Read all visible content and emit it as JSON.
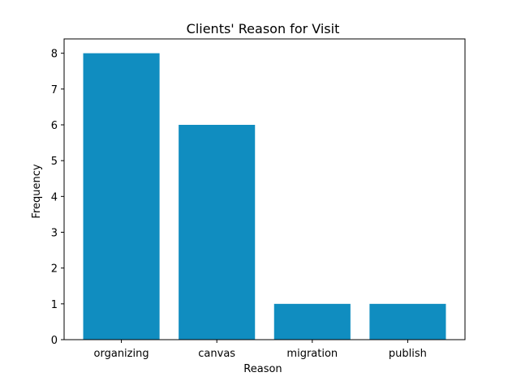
{
  "chart_data": {
    "type": "bar",
    "title": "Clients' Reason for Visit",
    "xlabel": "Reason",
    "ylabel": "Frequency",
    "categories": [
      "organizing",
      "canvas",
      "migration",
      "publish"
    ],
    "values": [
      8,
      6,
      1,
      1
    ],
    "ylim": [
      0,
      8.4
    ],
    "yticks": [
      0,
      1,
      2,
      3,
      4,
      5,
      6,
      7,
      8
    ],
    "grid": false,
    "bar_color": "#108dc0"
  }
}
